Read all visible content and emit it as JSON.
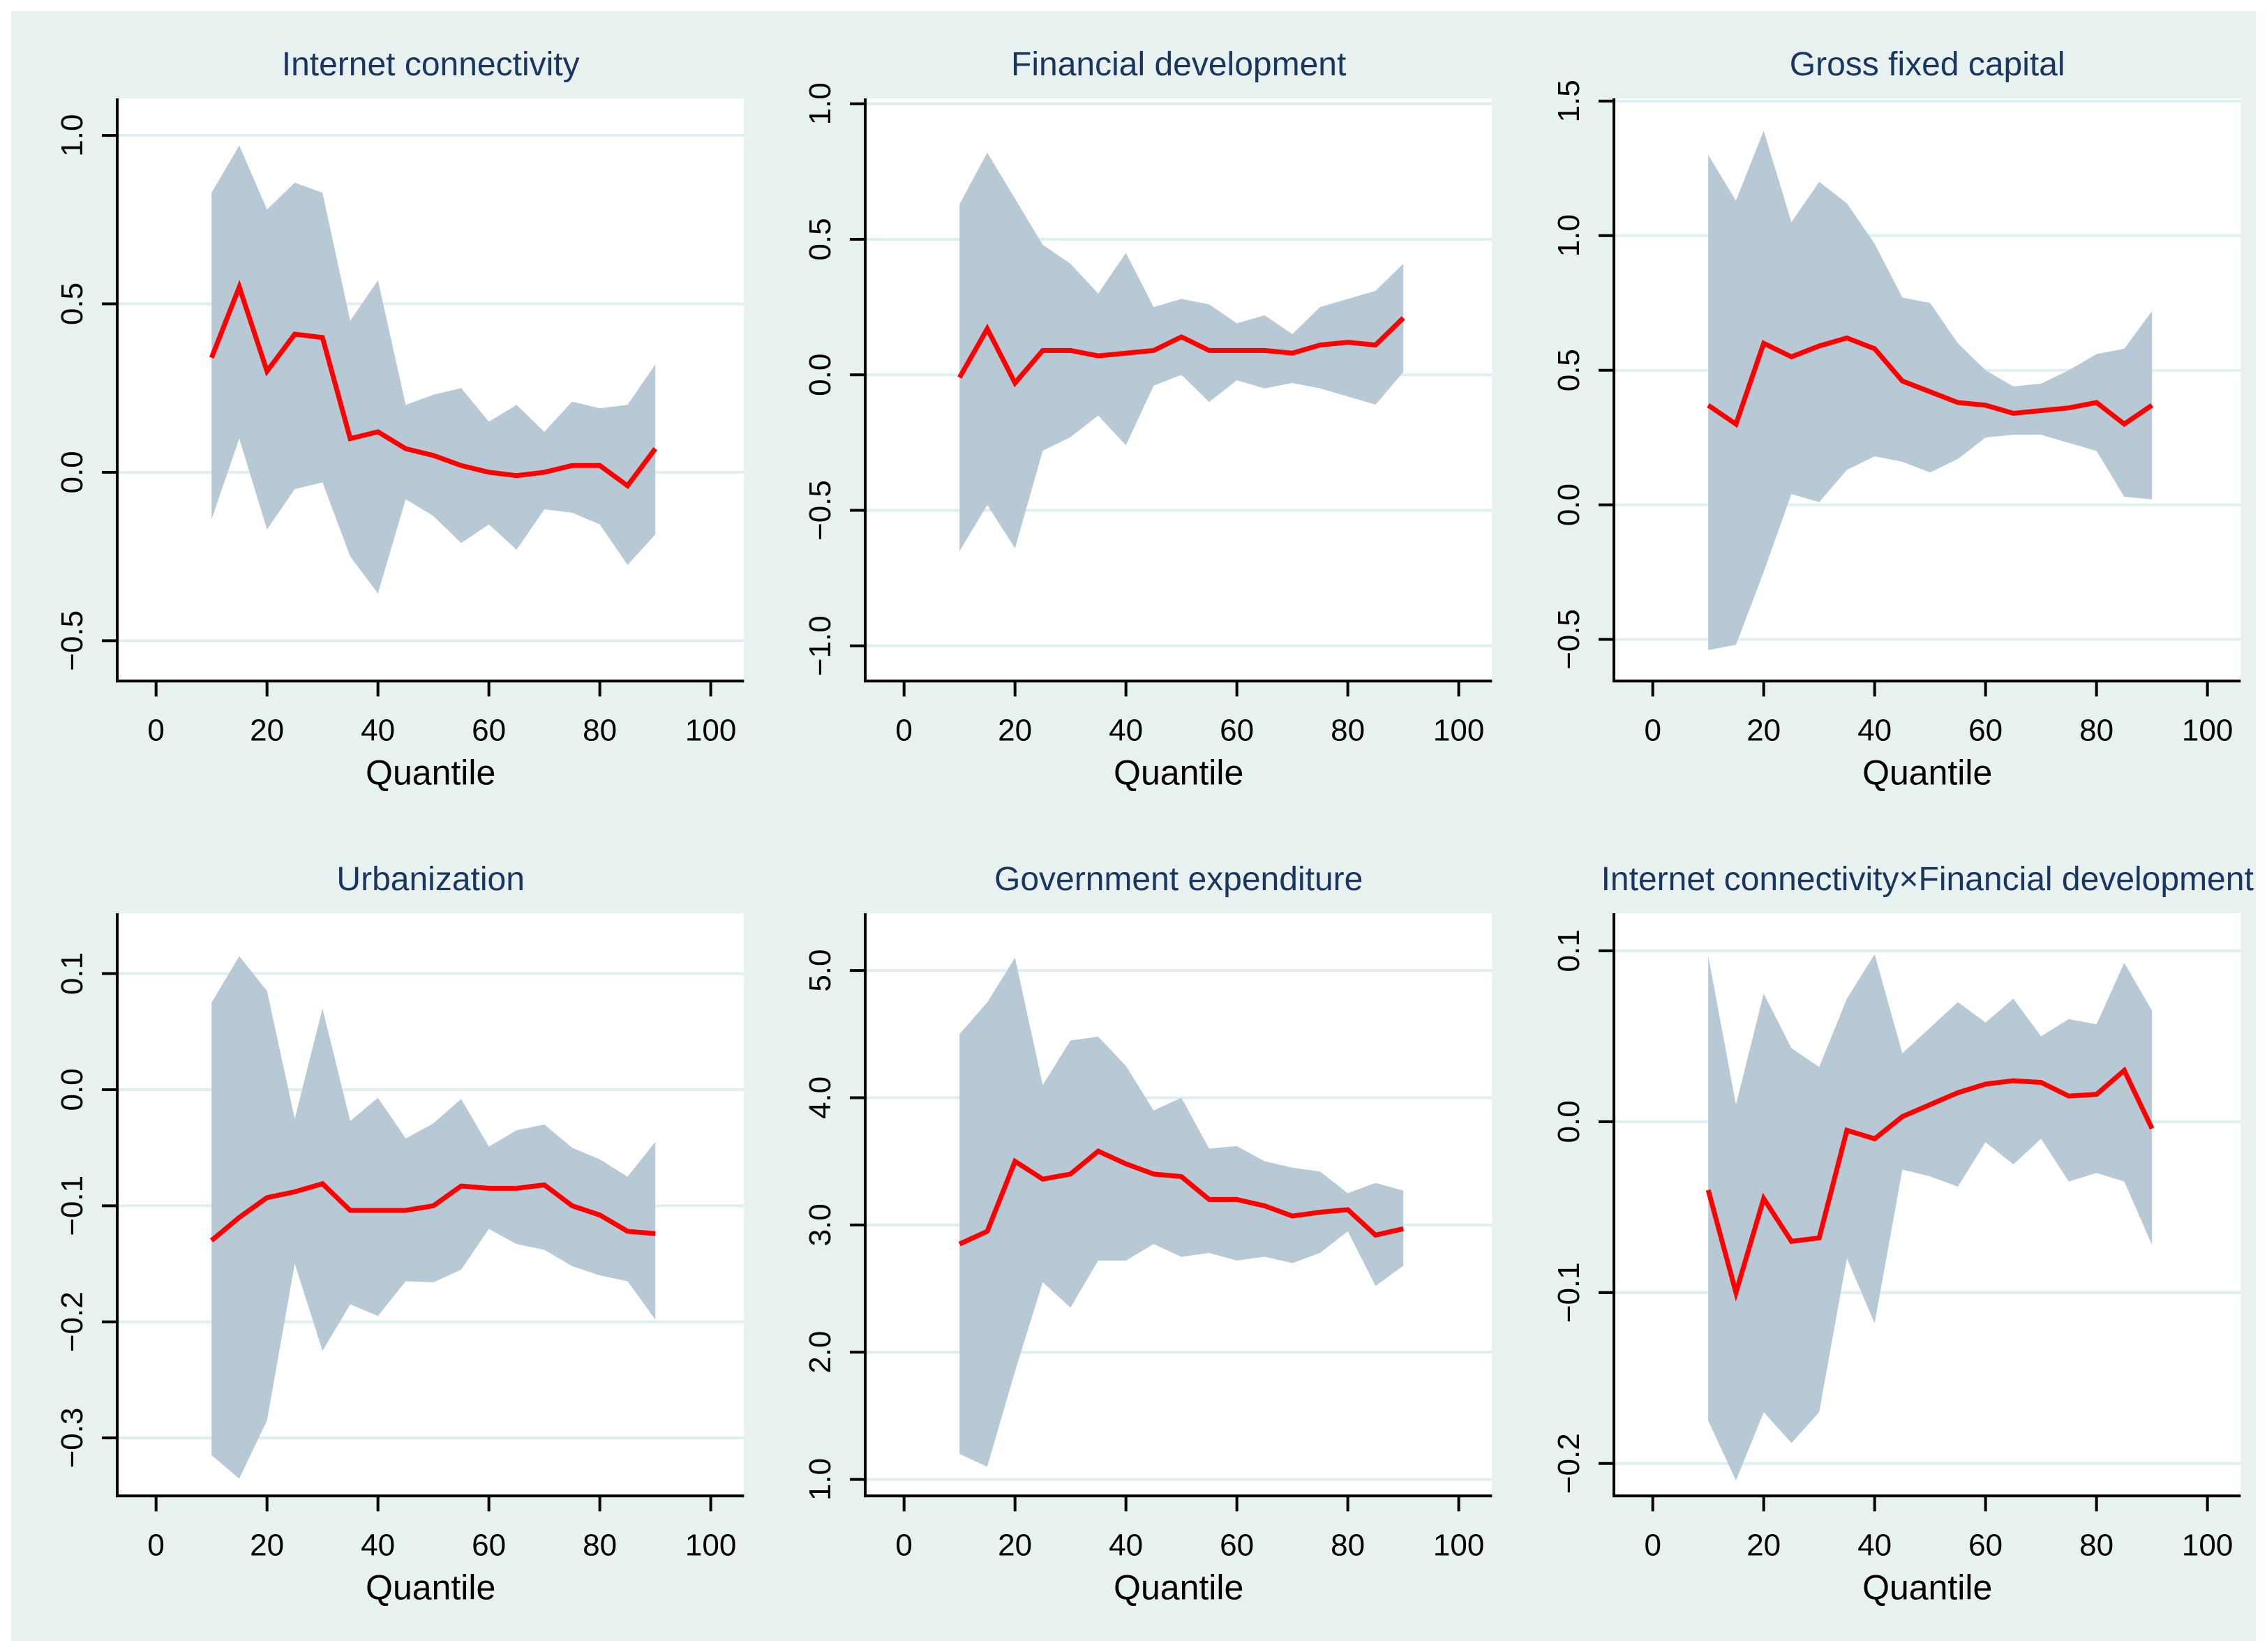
{
  "figure": {
    "background": "#e6f1f0",
    "outer_margin_color": "#ffffff",
    "panel_background": "#ffffff",
    "gridline_color": "#dfeef0",
    "band_color": "#b8c9d6",
    "line_color": "#ff0000",
    "title_color": "#1a365e",
    "axis_color": "#000000",
    "tick_label_color": "#000000",
    "xlabel": "Quantile"
  },
  "chart_data": [
    {
      "type": "line",
      "title": "Internet connectivity",
      "xlabel": "Quantile",
      "x": [
        10,
        15,
        20,
        25,
        30,
        35,
        40,
        45,
        50,
        55,
        60,
        65,
        70,
        75,
        80,
        85,
        90
      ],
      "series": [
        {
          "name": "quantile-coefficient",
          "values": [
            0.34,
            0.55,
            0.3,
            0.41,
            0.4,
            0.1,
            0.12,
            0.07,
            0.05,
            0.02,
            0.0,
            -0.01,
            0.0,
            0.02,
            0.02,
            -0.04,
            0.07
          ]
        }
      ],
      "band": {
        "name": "confidence-interval",
        "upper": [
          0.83,
          0.97,
          0.78,
          0.86,
          0.83,
          0.45,
          0.57,
          0.2,
          0.23,
          0.25,
          0.15,
          0.2,
          0.12,
          0.21,
          0.19,
          0.2,
          0.32
        ],
        "lower": [
          -0.14,
          0.1,
          -0.17,
          -0.05,
          -0.03,
          -0.25,
          -0.36,
          -0.08,
          -0.13,
          -0.21,
          -0.155,
          -0.23,
          -0.11,
          -0.12,
          -0.155,
          -0.275,
          -0.185
        ]
      },
      "xlim": [
        -7,
        106
      ],
      "ylim": [
        -0.62,
        1.11
      ],
      "xticks": [
        0,
        20,
        40,
        60,
        80,
        100
      ],
      "xtick_labels": [
        "0",
        "20",
        "40",
        "60",
        "80",
        "100"
      ],
      "yticks": [
        1.0,
        0.5,
        0.0,
        -0.5
      ],
      "ytick_labels": [
        "1.0",
        "0.5",
        "0.0",
        "−0.5"
      ],
      "grid": true,
      "legend": "none"
    },
    {
      "type": "line",
      "title": "Financial development",
      "xlabel": "Quantile",
      "x": [
        10,
        15,
        20,
        25,
        30,
        35,
        40,
        45,
        50,
        55,
        60,
        65,
        70,
        75,
        80,
        85,
        90
      ],
      "series": [
        {
          "name": "quantile-coefficient",
          "values": [
            -0.01,
            0.17,
            -0.03,
            0.09,
            0.09,
            0.07,
            0.08,
            0.09,
            0.14,
            0.09,
            0.09,
            0.09,
            0.08,
            0.11,
            0.12,
            0.11,
            0.21
          ]
        }
      ],
      "band": {
        "name": "confidence-interval",
        "upper": [
          0.63,
          0.82,
          0.65,
          0.48,
          0.41,
          0.3,
          0.45,
          0.25,
          0.28,
          0.26,
          0.19,
          0.22,
          0.15,
          0.25,
          0.28,
          0.31,
          0.41
        ],
        "lower": [
          -0.65,
          -0.48,
          -0.64,
          -0.28,
          -0.23,
          -0.15,
          -0.26,
          -0.04,
          0.0,
          -0.1,
          -0.02,
          -0.05,
          -0.03,
          -0.05,
          -0.08,
          -0.11,
          0.01
        ]
      },
      "xlim": [
        -7,
        106
      ],
      "ylim": [
        -1.13,
        1.02
      ],
      "xticks": [
        0,
        20,
        40,
        60,
        80,
        100
      ],
      "xtick_labels": [
        "0",
        "20",
        "40",
        "60",
        "80",
        "100"
      ],
      "yticks": [
        1.0,
        0.5,
        0.0,
        -0.5,
        -1.0
      ],
      "ytick_labels": [
        "1.0",
        "0.5",
        "0.0",
        "−0.5",
        "−1.0"
      ],
      "grid": true,
      "legend": "none"
    },
    {
      "type": "line",
      "title": "Gross fixed capital",
      "xlabel": "Quantile",
      "x": [
        10,
        15,
        20,
        25,
        30,
        35,
        40,
        45,
        50,
        55,
        60,
        65,
        70,
        75,
        80,
        85,
        90
      ],
      "series": [
        {
          "name": "quantile-coefficient",
          "values": [
            0.37,
            0.3,
            0.6,
            0.55,
            0.59,
            0.62,
            0.58,
            0.46,
            0.42,
            0.38,
            0.37,
            0.34,
            0.35,
            0.36,
            0.38,
            0.3,
            0.37
          ]
        }
      ],
      "band": {
        "name": "confidence-interval",
        "upper": [
          1.3,
          1.13,
          1.39,
          1.05,
          1.2,
          1.12,
          0.97,
          0.77,
          0.75,
          0.6,
          0.5,
          0.44,
          0.45,
          0.5,
          0.56,
          0.58,
          0.72
        ],
        "lower": [
          -0.54,
          -0.52,
          -0.25,
          0.04,
          0.01,
          0.13,
          0.18,
          0.16,
          0.12,
          0.17,
          0.25,
          0.26,
          0.26,
          0.23,
          0.2,
          0.03,
          0.02
        ]
      },
      "xlim": [
        -7,
        106
      ],
      "ylim": [
        -0.655,
        1.51
      ],
      "xticks": [
        0,
        20,
        40,
        60,
        80,
        100
      ],
      "xtick_labels": [
        "0",
        "20",
        "40",
        "60",
        "80",
        "100"
      ],
      "yticks": [
        1.5,
        1.0,
        0.5,
        0.0,
        -0.5
      ],
      "ytick_labels": [
        "1.5",
        "1.0",
        "0.5",
        "0.0",
        "−0.5"
      ],
      "grid": true,
      "legend": "none"
    },
    {
      "type": "line",
      "title": "Urbanization",
      "xlabel": "Quantile",
      "x": [
        10,
        15,
        20,
        25,
        30,
        35,
        40,
        45,
        50,
        55,
        60,
        65,
        70,
        75,
        80,
        85,
        90
      ],
      "series": [
        {
          "name": "quantile-coefficient",
          "values": [
            -0.13,
            -0.11,
            -0.093,
            -0.088,
            -0.081,
            -0.104,
            -0.104,
            -0.104,
            -0.1,
            -0.083,
            -0.085,
            -0.085,
            -0.082,
            -0.1,
            -0.108,
            -0.122,
            -0.124
          ]
        }
      ],
      "band": {
        "name": "confidence-interval",
        "upper": [
          0.075,
          0.115,
          0.085,
          -0.025,
          0.07,
          -0.027,
          -0.007,
          -0.042,
          -0.029,
          -0.008,
          -0.049,
          -0.035,
          -0.03,
          -0.05,
          -0.06,
          -0.075,
          -0.045
        ],
        "lower": [
          -0.315,
          -0.335,
          -0.285,
          -0.15,
          -0.225,
          -0.185,
          -0.195,
          -0.165,
          -0.166,
          -0.155,
          -0.12,
          -0.133,
          -0.138,
          -0.152,
          -0.16,
          -0.165,
          -0.198
        ]
      },
      "xlim": [
        -7,
        106
      ],
      "ylim": [
        -0.35,
        0.152
      ],
      "xticks": [
        0,
        20,
        40,
        60,
        80,
        100
      ],
      "xtick_labels": [
        "0",
        "20",
        "40",
        "60",
        "80",
        "100"
      ],
      "yticks": [
        0.1,
        0.0,
        -0.1,
        -0.2,
        -0.3
      ],
      "ytick_labels": [
        "0.1",
        "0.0",
        "−0.1",
        "−0.2",
        "−0.3"
      ],
      "grid": true,
      "legend": "none"
    },
    {
      "type": "line",
      "title": "Government expenditure",
      "xlabel": "Quantile",
      "x": [
        10,
        15,
        20,
        25,
        30,
        35,
        40,
        45,
        50,
        55,
        60,
        65,
        70,
        75,
        80,
        85,
        90
      ],
      "series": [
        {
          "name": "quantile-coefficient",
          "values": [
            2.85,
            2.95,
            3.5,
            3.36,
            3.4,
            3.58,
            3.48,
            3.4,
            3.38,
            3.2,
            3.2,
            3.15,
            3.07,
            3.1,
            3.12,
            2.92,
            2.97
          ]
        }
      ],
      "band": {
        "name": "confidence-interval",
        "upper": [
          4.5,
          4.75,
          5.1,
          4.1,
          4.45,
          4.48,
          4.25,
          3.9,
          4.0,
          3.6,
          3.62,
          3.5,
          3.45,
          3.42,
          3.25,
          3.33,
          3.27
        ],
        "lower": [
          1.2,
          1.1,
          1.85,
          2.55,
          2.35,
          2.72,
          2.72,
          2.85,
          2.75,
          2.78,
          2.72,
          2.75,
          2.7,
          2.78,
          2.95,
          2.52,
          2.68
        ]
      },
      "xlim": [
        -7,
        106
      ],
      "ylim": [
        0.87,
        5.45
      ],
      "xticks": [
        0,
        20,
        40,
        60,
        80,
        100
      ],
      "xtick_labels": [
        "0",
        "20",
        "40",
        "60",
        "80",
        "100"
      ],
      "yticks": [
        5.0,
        4.0,
        3.0,
        2.0,
        1.0
      ],
      "ytick_labels": [
        "5.0",
        "4.0",
        "3.0",
        "2.0",
        "1.0"
      ],
      "grid": true,
      "legend": "none"
    },
    {
      "type": "line",
      "title": "Internet connectivity×Financial development",
      "xlabel": "Quantile",
      "x": [
        10,
        15,
        20,
        25,
        30,
        35,
        40,
        45,
        50,
        55,
        60,
        65,
        70,
        75,
        80,
        85,
        90
      ],
      "series": [
        {
          "name": "quantile-coefficient",
          "values": [
            -0.04,
            -0.1,
            -0.045,
            -0.07,
            -0.068,
            -0.005,
            -0.01,
            0.003,
            0.01,
            0.017,
            0.022,
            0.024,
            0.023,
            0.015,
            0.016,
            0.03,
            -0.004
          ]
        }
      ],
      "band": {
        "name": "confidence-interval",
        "upper": [
          0.097,
          0.01,
          0.075,
          0.043,
          0.032,
          0.072,
          0.098,
          0.04,
          0.055,
          0.07,
          0.058,
          0.072,
          0.05,
          0.06,
          0.057,
          0.093,
          0.065
        ],
        "lower": [
          -0.175,
          -0.21,
          -0.17,
          -0.188,
          -0.17,
          -0.08,
          -0.118,
          -0.028,
          -0.032,
          -0.038,
          -0.012,
          -0.025,
          -0.01,
          -0.035,
          -0.03,
          -0.035,
          -0.072
        ]
      },
      "xlim": [
        -7,
        106
      ],
      "ylim": [
        -0.219,
        0.122
      ],
      "xticks": [
        0,
        20,
        40,
        60,
        80,
        100
      ],
      "xtick_labels": [
        "0",
        "20",
        "40",
        "60",
        "80",
        "100"
      ],
      "yticks": [
        0.1,
        0.0,
        -0.1,
        -0.2
      ],
      "ytick_labels": [
        "0.1",
        "0.0",
        "−0.1",
        "−0.2"
      ],
      "grid": true,
      "legend": "none"
    }
  ]
}
